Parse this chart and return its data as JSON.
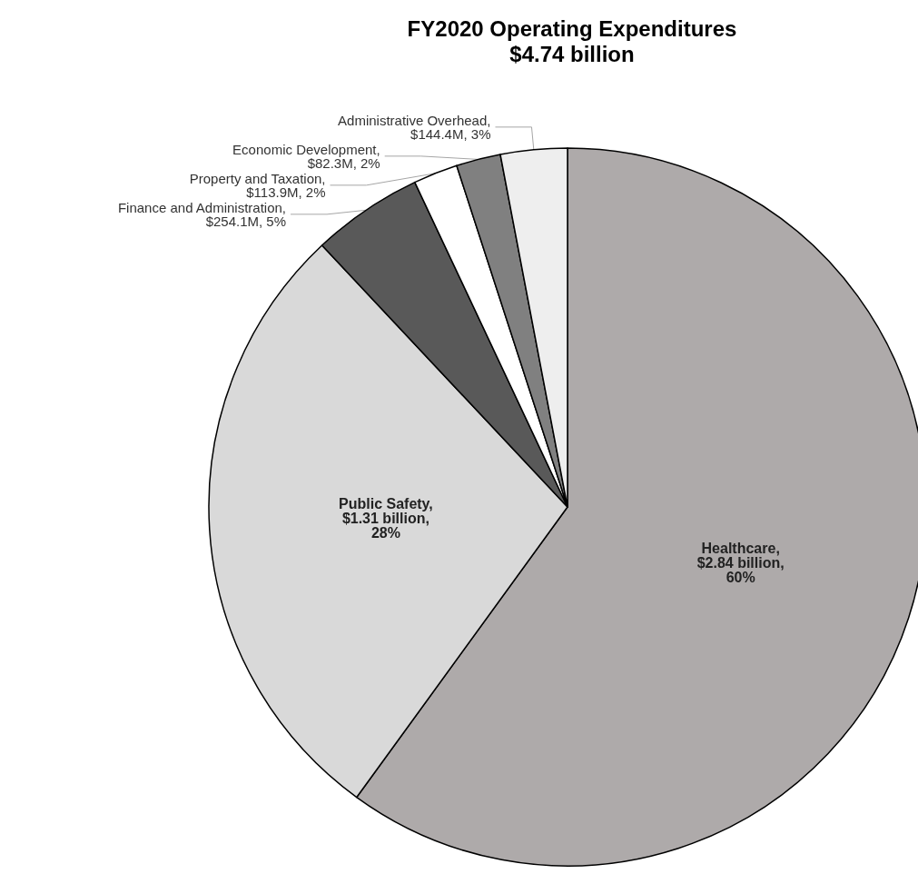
{
  "chart_data": {
    "type": "pie",
    "title": "FY2020 Operating Expenditures",
    "subtitle": "$4.74 billion",
    "categories": [
      "Healthcare",
      "Public Safety",
      "Finance and Administration",
      "Property and Taxation",
      "Economic Development",
      "Administrative Overhead"
    ],
    "values": [
      60,
      28,
      5,
      2,
      2,
      3
    ],
    "value_labels": [
      ", $2.84 billion, 60%",
      ", $1.31 billion, 28%",
      ", $254.1M, 5%",
      ", $113.9M, 2%",
      ", $82.3M, 2%",
      ", $144.4M, 3%"
    ],
    "colors": [
      "#aeaaaa",
      "#d9d9d9",
      "#595959",
      "#ffffff",
      "#808080",
      "#eeeeee"
    ],
    "legend": false
  }
}
